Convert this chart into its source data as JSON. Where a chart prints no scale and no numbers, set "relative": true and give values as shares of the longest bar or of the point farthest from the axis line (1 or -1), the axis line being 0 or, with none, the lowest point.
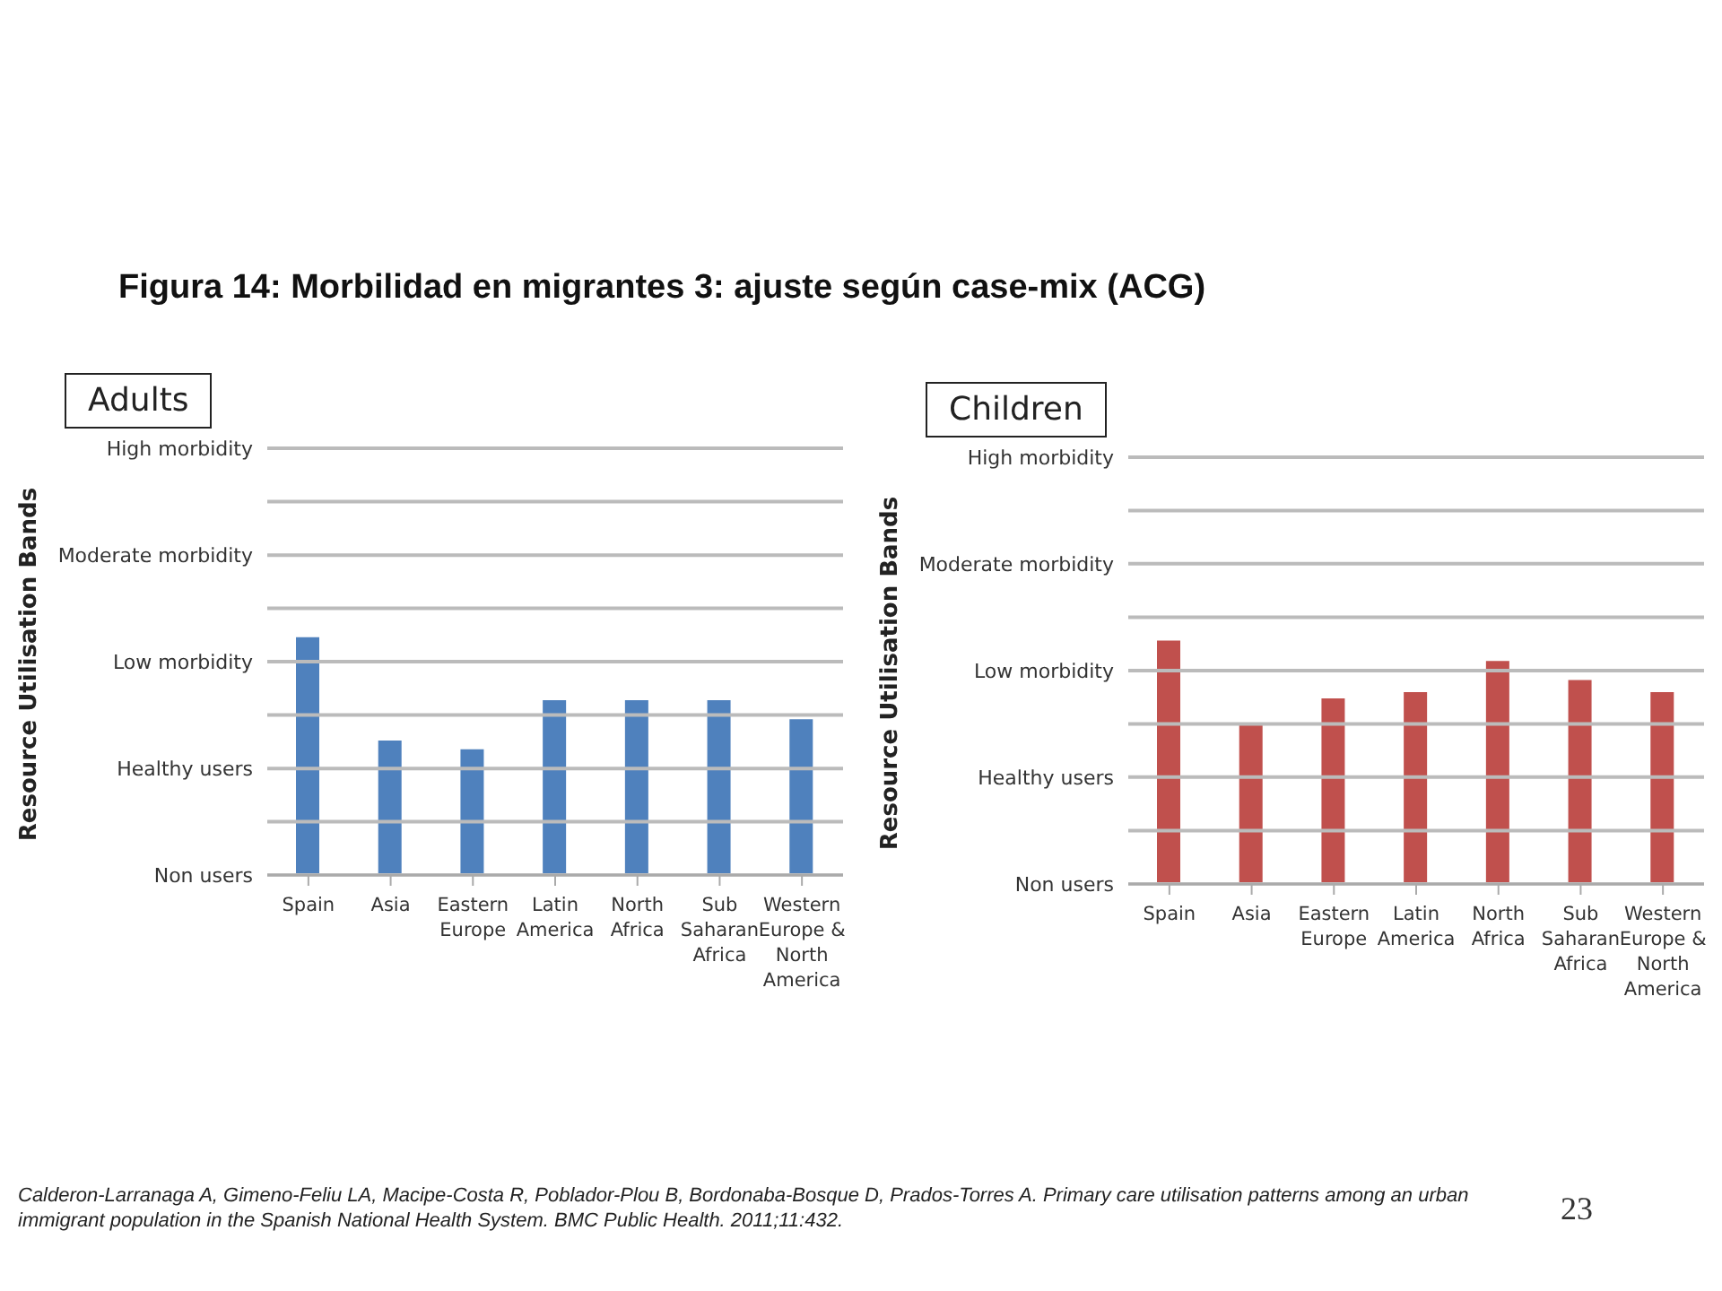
{
  "chart_data": [
    {
      "type": "bar",
      "title": "Figura 14: Morbilidad en migrantes 3: ajuste según case-mix (ACG)",
      "subtitle": "Adults",
      "ylabel": "Resource Utilisation Bands",
      "categories": [
        "Spain",
        "Asia",
        "Eastern Europe",
        "Latin America",
        "North Africa",
        "Sub Saharan Africa",
        "Western Europe & North America"
      ],
      "series": [
        {
          "color": "#4f81bd",
          "values": [
            1,
            0.565,
            0.529,
            0.735,
            0.735,
            0.735,
            0.655
          ]
        }
      ],
      "relative": true,
      "legend": false,
      "ref_lines": [
        {
          "axis": "y",
          "value": 0,
          "label": "Non users"
        },
        {
          "axis": "y",
          "value": 0.224,
          "label": null
        },
        {
          "axis": "y",
          "value": 0.448,
          "label": "Healthy users"
        },
        {
          "axis": "y",
          "value": 0.673,
          "label": null
        },
        {
          "axis": "y",
          "value": 0.897,
          "label": "Low morbidity"
        },
        {
          "axis": "y",
          "value": 1.121,
          "label": null
        },
        {
          "axis": "y",
          "value": 1.345,
          "label": "Moderate morbidity"
        },
        {
          "axis": "y",
          "value": 1.57,
          "label": null
        },
        {
          "axis": "y",
          "value": 1.794,
          "label": "High morbidity"
        }
      ],
      "annotations": [
        "Calderon-Larranaga A, Gimeno-Feliu LA, Macipe-Costa R, Poblador-Plou B, Bordonaba-Bosque D, Prados-Torres A. Primary care utilisation patterns among an urban immigrant population in the Spanish National Health System. BMC Public Health. 2011;11:432."
      ]
    },
    {
      "type": "bar",
      "subtitle": "Children",
      "ylabel": "Resource Utilisation Bands",
      "categories": [
        "Spain",
        "Asia",
        "Eastern Europe",
        "Latin America",
        "North Africa",
        "Sub Saharan Africa",
        "Western Europe & North America"
      ],
      "series": [
        {
          "color": "#c0504d",
          "values": [
            1,
            0.662,
            0.763,
            0.789,
            0.917,
            0.838,
            0.789
          ]
        }
      ],
      "relative": true,
      "legend": false,
      "ref_lines": [
        {
          "axis": "y",
          "value": 0,
          "label": "Non users"
        },
        {
          "axis": "y",
          "value": 0.219,
          "label": null
        },
        {
          "axis": "y",
          "value": 0.439,
          "label": "Healthy users"
        },
        {
          "axis": "y",
          "value": 0.658,
          "label": null
        },
        {
          "axis": "y",
          "value": 0.877,
          "label": "Low morbidity"
        },
        {
          "axis": "y",
          "value": 1.096,
          "label": null
        },
        {
          "axis": "y",
          "value": 1.316,
          "label": "Moderate morbidity"
        },
        {
          "axis": "y",
          "value": 1.535,
          "label": null
        },
        {
          "axis": "y",
          "value": 1.754,
          "label": "High morbidity"
        }
      ],
      "annotations": [
        "23"
      ]
    }
  ]
}
